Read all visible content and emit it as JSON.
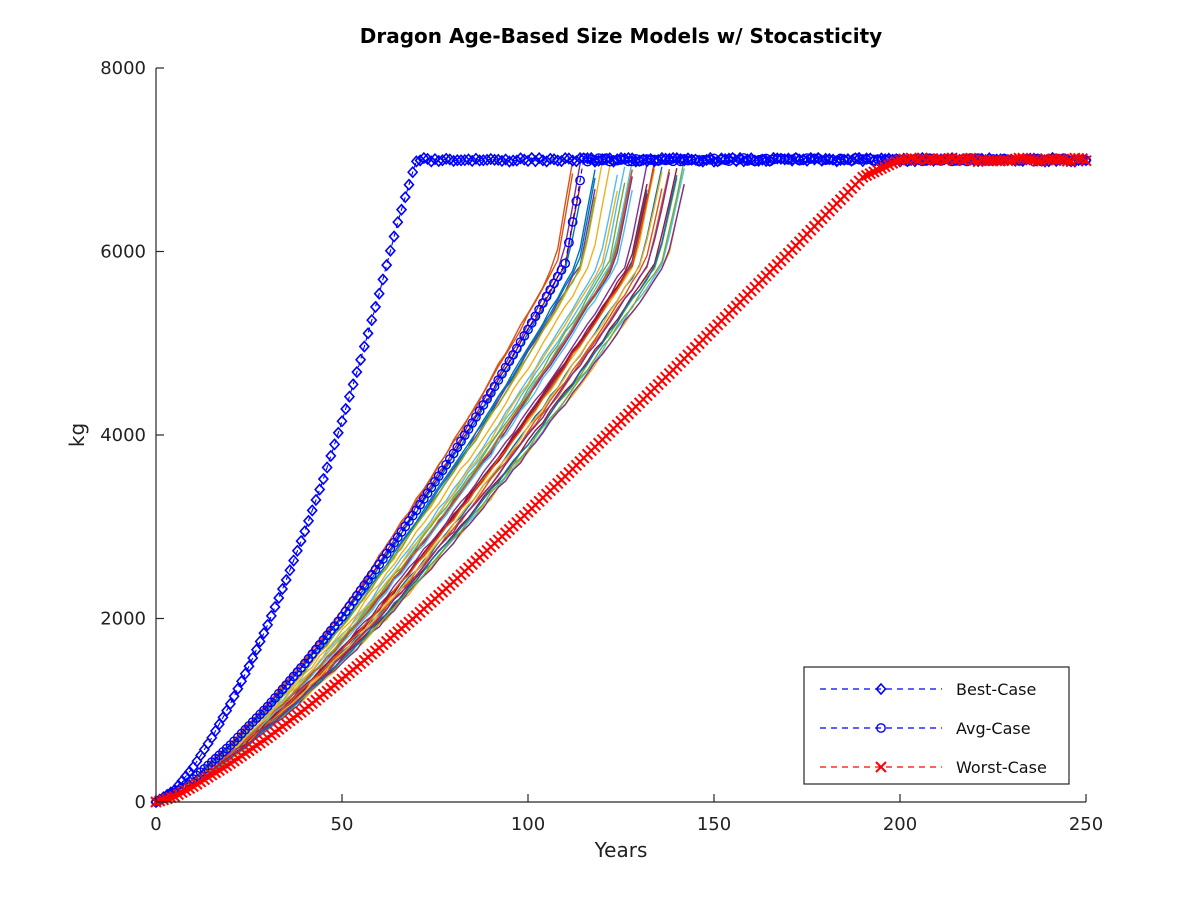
{
  "chart_data": {
    "type": "line",
    "title": "Dragon Age-Based Size Models w/ Stocasticity",
    "xlabel": "Years",
    "ylabel": "kg",
    "xlim": [
      0,
      250
    ],
    "ylim": [
      0,
      8000
    ],
    "xticks": [
      0,
      50,
      100,
      150,
      200,
      250
    ],
    "xtick_labels": [
      "0",
      "50",
      "100",
      "150",
      "200",
      "250"
    ],
    "yticks": [
      0,
      2000,
      4000,
      6000,
      8000
    ],
    "ytick_labels": [
      "0",
      "2000",
      "4000",
      "6000",
      "8000"
    ],
    "grid": false,
    "legend_position": "bottom-right",
    "series": [
      {
        "name": "Best-Case",
        "color": "#0000ff",
        "line_style": "dashed",
        "marker": "diamond",
        "x": [
          0,
          5,
          10,
          15,
          20,
          25,
          30,
          35,
          40,
          45,
          50,
          55,
          60,
          65,
          70,
          100,
          150,
          200,
          250
        ],
        "y": [
          0,
          130,
          380,
          700,
          1070,
          1480,
          1930,
          2420,
          2950,
          3520,
          4150,
          4820,
          5540,
          6320,
          7000,
          7000,
          7000,
          7000,
          7000
        ]
      },
      {
        "name": "Avg-Case",
        "color": "#0000ff",
        "line_style": "dashed",
        "marker": "circle",
        "x": [
          0,
          5,
          10,
          20,
          30,
          40,
          50,
          60,
          70,
          80,
          90,
          100,
          110,
          115,
          150,
          200,
          250
        ],
        "y": [
          0,
          100,
          250,
          620,
          1040,
          1510,
          2020,
          2590,
          3180,
          3800,
          4460,
          5150,
          5870,
          7000,
          7000,
          7000,
          7000
        ]
      },
      {
        "name": "Worst-Case",
        "color": "#ff0000",
        "line_style": "dashed",
        "marker": "x",
        "x": [
          0,
          5,
          10,
          20,
          30,
          40,
          50,
          60,
          70,
          80,
          90,
          100,
          110,
          120,
          130,
          140,
          150,
          160,
          170,
          180,
          190,
          200,
          225,
          250
        ],
        "y": [
          0,
          60,
          170,
          420,
          700,
          1010,
          1340,
          1680,
          2030,
          2400,
          2780,
          3160,
          3550,
          3950,
          4350,
          4750,
          5160,
          5570,
          5980,
          6400,
          6810,
          7000,
          7000,
          7000
        ]
      }
    ],
    "stochastic_runs": {
      "count": 40,
      "colors": [
        "#0072bd",
        "#d95319",
        "#edb120",
        "#7e2f8e",
        "#77ac30",
        "#4dbeee",
        "#a2142f"
      ],
      "end_age_range": [
        112,
        145
      ],
      "plateau_kg": 7000
    }
  }
}
